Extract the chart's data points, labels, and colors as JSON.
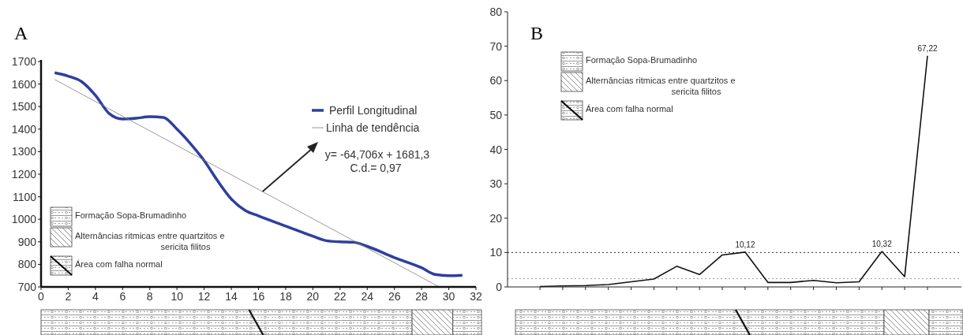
{
  "chart_data": [
    {
      "type": "line",
      "title": "A",
      "xlim": [
        0,
        32
      ],
      "ylim": [
        700,
        1700
      ],
      "xticks": [
        0,
        2,
        4,
        6,
        8,
        10,
        12,
        14,
        16,
        18,
        20,
        22,
        24,
        26,
        28,
        30,
        32
      ],
      "yticks": [
        700,
        800,
        900,
        1000,
        1100,
        1200,
        1300,
        1400,
        1500,
        1600,
        1700
      ],
      "grid": false,
      "legend": "top right",
      "line_style": "solid",
      "marker": "none",
      "series": [
        {
          "name": "Perfil Longitudinal",
          "color": "#2e3f9e",
          "x": [
            1,
            2,
            3,
            4,
            5,
            6,
            7,
            8,
            9,
            10,
            11,
            12,
            13,
            14,
            15,
            16,
            18,
            20,
            21,
            22,
            23,
            24,
            26,
            28,
            29,
            30,
            31
          ],
          "values": [
            1650,
            1635,
            1610,
            1550,
            1470,
            1445,
            1448,
            1455,
            1452,
            1400,
            1335,
            1260,
            1170,
            1090,
            1040,
            1015,
            970,
            925,
            905,
            900,
            898,
            880,
            830,
            785,
            755,
            750,
            752
          ]
        },
        {
          "name": "Linha de tendência",
          "color": "#808080",
          "x": [
            1,
            29.3
          ],
          "values": [
            1620,
            700
          ]
        }
      ],
      "annotations": [
        {
          "text": "y= -64,706x + 1681,3",
          "x": 16.3,
          "y": 1123
        },
        "C.d.= 0,97",
        "Formação Sopa-Brumadinho",
        "Alternâncias ritmicas entre quartzitos e sericita filitos",
        "Área com falha normal"
      ]
    },
    {
      "type": "line",
      "title": "B",
      "categories": [
        null,
        null,
        null,
        null,
        null,
        null,
        null,
        null,
        null,
        null,
        null,
        null,
        null,
        null,
        null,
        null,
        null,
        null
      ],
      "ylim": [
        0,
        80
      ],
      "yticks": [
        0,
        10,
        20,
        30,
        40,
        50,
        60,
        70,
        80
      ],
      "grid": false,
      "tick_labels": "y",
      "line_style": "solid",
      "marker": "none",
      "series": [
        {
          "color": "#111111",
          "values": [
            0.1,
            0.3,
            0.4,
            0.7,
            1.5,
            2.3,
            6.0,
            3.6,
            9.3,
            10.12,
            1.3,
            1.3,
            1.9,
            1.2,
            1.5,
            10.32,
            3.0,
            67.22
          ],
          "value_labels": [
            null,
            null,
            null,
            null,
            null,
            null,
            null,
            null,
            null,
            "10,12",
            null,
            null,
            null,
            null,
            null,
            "10,32",
            null,
            "67,22"
          ]
        }
      ],
      "ref_lines": [
        {
          "axis": "y",
          "value": 10,
          "line_style": "dotted",
          "color": "#333333"
        },
        {
          "axis": "y",
          "value": 2.4,
          "line_style": "dotted",
          "color": "#777777"
        }
      ],
      "annotations": [
        "Formação Sopa-Brumadinho",
        "Alternâncias ritmicas entre quartzitos e sericita filitos",
        "Área com falha normal"
      ]
    }
  ]
}
